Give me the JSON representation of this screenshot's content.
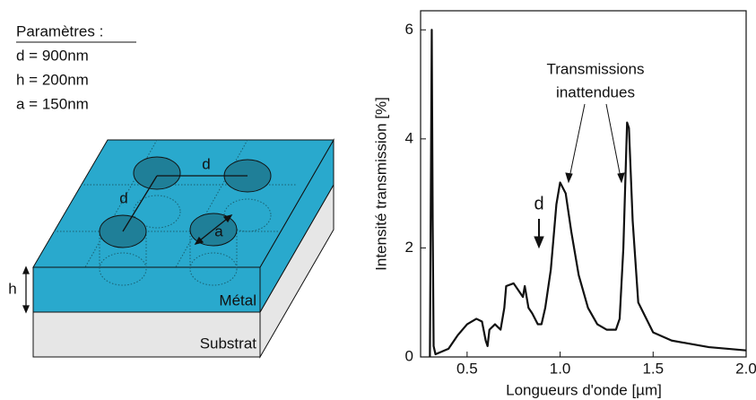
{
  "diagram": {
    "parameters_title": "Paramètres :",
    "parameters": [
      "d = 900nm",
      "h = 200nm",
      "a = 150nm"
    ],
    "labels": {
      "d_top": "d",
      "d_diag": "d",
      "a": "a",
      "h": "h",
      "metal": "Métal",
      "substrate": "Substrat"
    }
  },
  "chart_data": {
    "type": "line",
    "x_label": "Longueurs d'onde [µm]",
    "y_label": "Intensité transmission [%]",
    "annotations": [
      "Transmissions",
      "inattendues",
      "d"
    ],
    "x": [
      0.3,
      0.31,
      0.315,
      0.32,
      0.33,
      0.4,
      0.45,
      0.5,
      0.55,
      0.58,
      0.6,
      0.61,
      0.62,
      0.65,
      0.68,
      0.7,
      0.71,
      0.75,
      0.78,
      0.8,
      0.81,
      0.83,
      0.85,
      0.88,
      0.9,
      0.92,
      0.95,
      0.98,
      1.0,
      1.03,
      1.06,
      1.1,
      1.15,
      1.2,
      1.25,
      1.3,
      1.32,
      1.34,
      1.36,
      1.37,
      1.39,
      1.42,
      1.5,
      1.6,
      1.8,
      2.0
    ],
    "series": [
      {
        "color": "#111111",
        "values": [
          0,
          6.0,
          2.5,
          0.2,
          0.05,
          0.15,
          0.4,
          0.6,
          0.7,
          0.65,
          0.3,
          0.2,
          0.5,
          0.6,
          0.5,
          0.9,
          1.3,
          1.35,
          1.2,
          1.1,
          1.3,
          0.9,
          0.8,
          0.6,
          0.6,
          0.9,
          1.6,
          2.8,
          3.2,
          3.0,
          2.3,
          1.5,
          0.9,
          0.6,
          0.5,
          0.5,
          0.7,
          2.0,
          4.3,
          4.2,
          2.5,
          1.0,
          0.45,
          0.3,
          0.18,
          0.12
        ]
      }
    ],
    "xlim": [
      0.25,
      2.0
    ],
    "ylim": [
      0,
      6.35
    ],
    "xticks": [
      0.5,
      {
        "value": 1,
        "label": "1.0"
      },
      1.5,
      {
        "value": 2,
        "label": "2.0"
      }
    ],
    "yticks": [
      0,
      2,
      4,
      6
    ]
  }
}
